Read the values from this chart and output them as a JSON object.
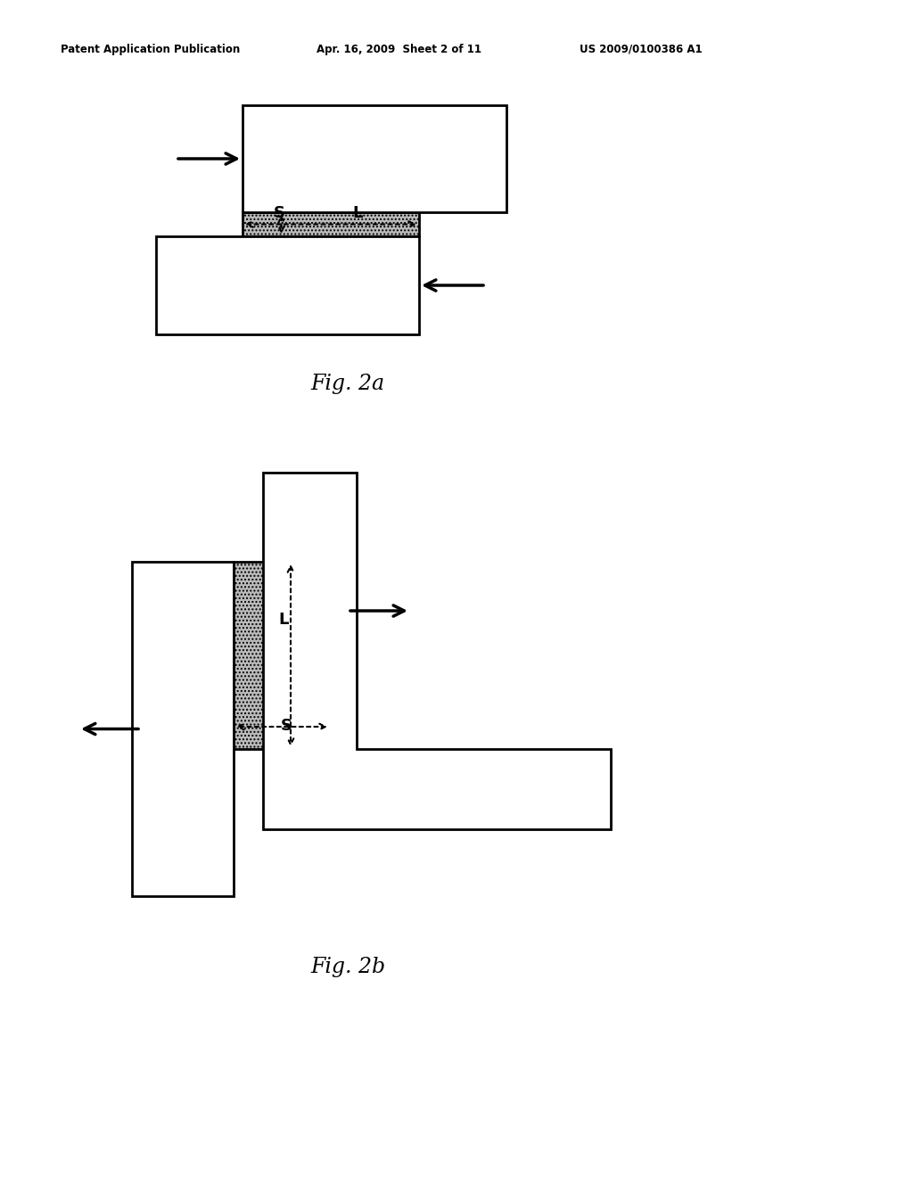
{
  "fig_width": 10.24,
  "fig_height": 13.2,
  "bg_color": "#ffffff",
  "header_left": "Patent Application Publication",
  "header_mid": "Apr. 16, 2009  Sheet 2 of 11",
  "header_right": "US 2009/0100386 A1",
  "fig2a_label": "Fig. 2a",
  "fig2b_label": "Fig. 2b",
  "lw": 2.0,
  "hatch_color": "#b0b0b0",
  "outline_color": "#000000"
}
